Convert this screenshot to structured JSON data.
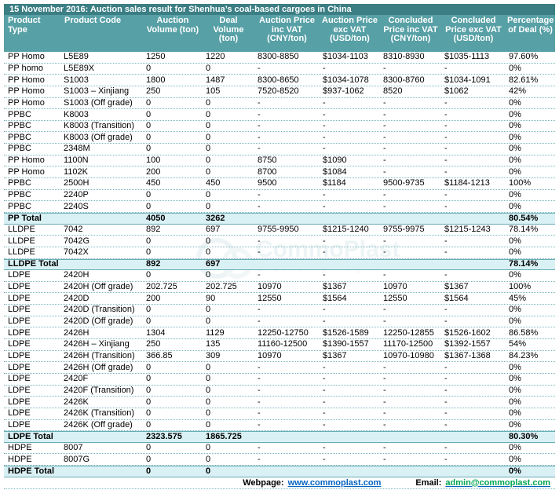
{
  "title": "15 November 2016: Auction sales result for Shenhua’s coal-based cargoes in China",
  "table": {
    "headers": [
      "Product Type",
      "Product Code",
      "Auction Volume (ton)",
      "Deal Volume (ton)",
      "Auction Price inc VAT (CNY/ton)",
      "Auction Price exc VAT (USD/ton)",
      "Concluded Price inc VAT (CNY/ton)",
      "Concluded Price exc VAT (USD/ton)",
      "Percentage of Deal (%)"
    ],
    "column_keys": [
      "product-type",
      "product-code",
      "auction-volume",
      "deal-volume",
      "auction-price-inc-vat",
      "auction-price-exc-vat",
      "concluded-price-inc-vat",
      "concluded-price-exc-vat",
      "percentage-of-deal"
    ],
    "rows": [
      {
        "total": false,
        "cells": [
          "PP Homo",
          "L5E89",
          "1250",
          "1220",
          "8300-8850",
          "$1034-1103",
          "8310-8930",
          "$1035-1113",
          "97.60%"
        ]
      },
      {
        "total": false,
        "cells": [
          "PP homo",
          "L5E89X",
          "0",
          "0",
          "-",
          "-",
          "-",
          "-",
          "0%"
        ]
      },
      {
        "total": false,
        "cells": [
          "PP Homo",
          "S1003",
          "1800",
          "1487",
          "8300-8650",
          "$1034-1078",
          "8300-8760",
          "$1034-1091",
          "82.61%"
        ]
      },
      {
        "total": false,
        "cells": [
          "PP Homo",
          "S1003 – Xinjiang",
          "250",
          "105",
          "7520-8520",
          "$937-1062",
          "8520",
          "$1062",
          "42%"
        ]
      },
      {
        "total": false,
        "cells": [
          "PP Homo",
          "S1003 (Off grade)",
          "0",
          "0",
          "-",
          "-",
          "-",
          "-",
          "0%"
        ]
      },
      {
        "total": false,
        "cells": [
          "PPBC",
          "K8003",
          "0",
          "0",
          "-",
          "-",
          "-",
          "-",
          "0%"
        ]
      },
      {
        "total": false,
        "cells": [
          "PPBC",
          "K8003 (Transition)",
          "0",
          "0",
          "-",
          "-",
          "-",
          "-",
          "0%"
        ]
      },
      {
        "total": false,
        "cells": [
          "PPBC",
          "K8003 (Off grade)",
          "0",
          "0",
          "-",
          "-",
          "-",
          "-",
          "0%"
        ]
      },
      {
        "total": false,
        "cells": [
          "PPBC",
          "2348M",
          "0",
          "0",
          "-",
          "-",
          "-",
          "-",
          "0%"
        ]
      },
      {
        "total": false,
        "cells": [
          "PP Homo",
          "1100N",
          "100",
          "0",
          "8750",
          "$1090",
          "-",
          "-",
          "0%"
        ]
      },
      {
        "total": false,
        "cells": [
          "PP Homo",
          "1102K",
          "200",
          "0",
          "8700",
          "$1084",
          "-",
          "-",
          "0%"
        ]
      },
      {
        "total": false,
        "cells": [
          "PPBC",
          "2500H",
          "450",
          "450",
          "9500",
          "$1184",
          "9500-9735",
          "$1184-1213",
          "100%"
        ]
      },
      {
        "total": false,
        "cells": [
          "PPBC",
          "2240P",
          "0",
          "0",
          "-",
          "-",
          "-",
          "-",
          "0%"
        ]
      },
      {
        "total": false,
        "cells": [
          "PPBC",
          "2240S",
          "0",
          "0",
          "-",
          "-",
          "-",
          "-",
          "0%"
        ]
      },
      {
        "total": true,
        "cells": [
          "PP Total",
          "",
          "4050",
          "3262",
          "",
          "",
          "",
          "",
          "80.54%"
        ]
      },
      {
        "total": false,
        "cells": [
          "LLDPE",
          "7042",
          "892",
          "697",
          "9755-9950",
          "$1215-1240",
          "9755-9975",
          "$1215-1243",
          "78.14%"
        ]
      },
      {
        "total": false,
        "cells": [
          "LLDPE",
          "7042G",
          "0",
          "0",
          "-",
          "-",
          "-",
          "-",
          "0%"
        ]
      },
      {
        "total": false,
        "cells": [
          "LLDPE",
          "7042X",
          "0",
          "0",
          "-",
          "-",
          "-",
          "-",
          "0%"
        ]
      },
      {
        "total": true,
        "cells": [
          "LLDPE Total",
          "",
          "892",
          "697",
          "",
          "",
          "",
          "",
          "78.14%"
        ]
      },
      {
        "total": false,
        "cells": [
          "LDPE",
          "2420H",
          "0",
          "0",
          "-",
          "-",
          "-",
          "-",
          "0%"
        ]
      },
      {
        "total": false,
        "cells": [
          "LDPE",
          "2420H (Off grade)",
          "202.725",
          "202.725",
          "10970",
          "$1367",
          "10970",
          "$1367",
          "100%"
        ]
      },
      {
        "total": false,
        "cells": [
          "LDPE",
          "2420D",
          "200",
          "90",
          "12550",
          "$1564",
          "12550",
          "$1564",
          "45%"
        ]
      },
      {
        "total": false,
        "cells": [
          "LDPE",
          "2420D (Transition)",
          "0",
          "0",
          "-",
          "-",
          "-",
          "-",
          "0%"
        ]
      },
      {
        "total": false,
        "cells": [
          "LDPE",
          "2420D (Off grade)",
          "0",
          "0",
          "-",
          "-",
          "-",
          "-",
          "0%"
        ]
      },
      {
        "total": false,
        "cells": [
          "LDPE",
          "2426H",
          "1304",
          "1129",
          "12250-12750",
          "$1526-1589",
          "12250-12855",
          "$1526-1602",
          "86.58%"
        ]
      },
      {
        "total": false,
        "cells": [
          "LDPE",
          "2426H – Xinjiang",
          "250",
          "135",
          "11160-12500",
          "$1390-1557",
          "11170-12500",
          "$1392-1557",
          "54%"
        ]
      },
      {
        "total": false,
        "cells": [
          "LDPE",
          "2426H (Transition)",
          "366.85",
          "309",
          "10970",
          "$1367",
          "10970-10980",
          "$1367-1368",
          "84.23%"
        ]
      },
      {
        "total": false,
        "cells": [
          "LDPE",
          "2426H (Off grade)",
          "0",
          "0",
          "-",
          "-",
          "-",
          "-",
          "0%"
        ]
      },
      {
        "total": false,
        "cells": [
          "LDPE",
          "2420F",
          "0",
          "0",
          "-",
          "-",
          "-",
          "-",
          "0%"
        ]
      },
      {
        "total": false,
        "cells": [
          "LDPE",
          "2420F (Transition)",
          "0",
          "0",
          "-",
          "-",
          "-",
          "-",
          "0%"
        ]
      },
      {
        "total": false,
        "cells": [
          "LDPE",
          "2426K",
          "0",
          "0",
          "-",
          "-",
          "-",
          "-",
          "0%"
        ]
      },
      {
        "total": false,
        "cells": [
          "LDPE",
          "2426K (Transition)",
          "0",
          "0",
          "-",
          "-",
          "-",
          "-",
          "0%"
        ]
      },
      {
        "total": false,
        "cells": [
          "LDPE",
          "2426K (Off grade)",
          "0",
          "0",
          "-",
          "-",
          "-",
          "-",
          "0%"
        ]
      },
      {
        "total": true,
        "cells": [
          "LDPE Total",
          "",
          "2323.575",
          "1865.725",
          "",
          "",
          "",
          "",
          "80.30%"
        ]
      },
      {
        "total": false,
        "cells": [
          "HDPE",
          "8007",
          "0",
          "0",
          "-",
          "-",
          "-",
          "-",
          "0%"
        ]
      },
      {
        "total": false,
        "cells": [
          "HDPE",
          "8007G",
          "0",
          "0",
          "-",
          "-",
          "-",
          "-",
          "0%"
        ]
      },
      {
        "total": true,
        "cells": [
          "HDPE Total",
          "",
          "0",
          "0",
          "",
          "",
          "",
          "",
          "0%"
        ]
      }
    ]
  },
  "footer": {
    "webpage_label": "Webpage:",
    "webpage_url": "www.commoplast.com",
    "email_label": "Email:",
    "email_address": "admin@commoplast.com"
  },
  "watermark": {
    "name": "CommoPlast",
    "tagline": "Empowering Insights"
  },
  "colors": {
    "title_bar": "#3B7E84",
    "header_row": "#57A0A6",
    "total_row_bg": "#D9F1F5",
    "row_divider": "#7AB6C0",
    "webpage_link": "#0563C1",
    "email_link": "#00A651"
  }
}
